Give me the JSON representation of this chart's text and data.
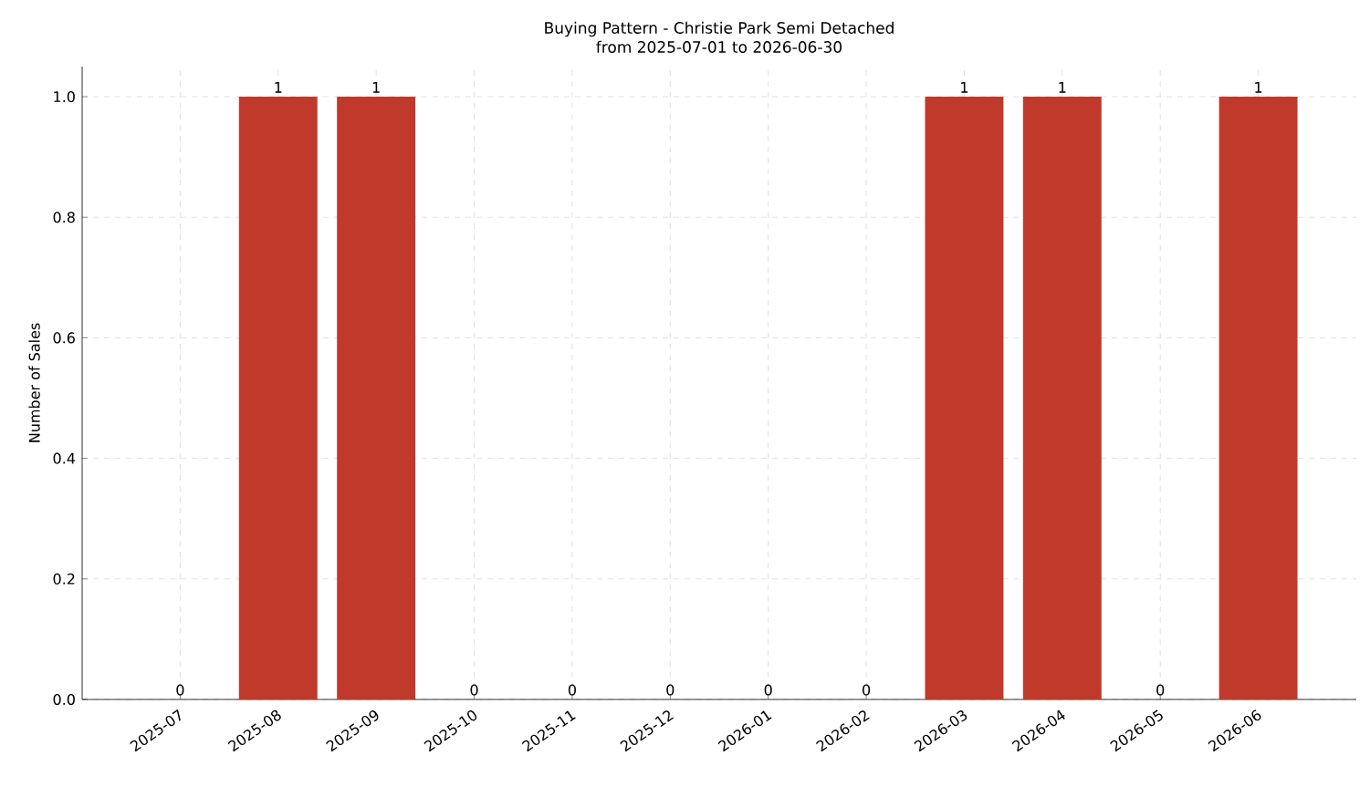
{
  "chart_data": {
    "type": "bar",
    "title": "Buying Pattern - Christie Park Semi Detached\nfrom 2025-07-01 to 2026-06-30",
    "ylabel": "Number of Sales",
    "categories": [
      "2025-07",
      "2025-08",
      "2025-09",
      "2025-10",
      "2025-11",
      "2025-12",
      "2026-01",
      "2026-02",
      "2026-03",
      "2026-04",
      "2026-05",
      "2026-06"
    ],
    "values": [
      0,
      1,
      1,
      0,
      0,
      0,
      0,
      0,
      1,
      1,
      0,
      1
    ],
    "color": "#c0392b",
    "ylim": [
      0,
      1.05
    ],
    "yticks": [
      {
        "value": 0,
        "label": "0.0"
      },
      {
        "value": 0.2,
        "label": "0.2"
      },
      {
        "value": 0.4,
        "label": "0.4"
      },
      {
        "value": 0.6,
        "label": "0.6"
      },
      {
        "value": 0.8,
        "label": "0.8"
      },
      {
        "value": 1.0,
        "label": "1.0"
      }
    ],
    "grid": true,
    "data_labels": true
  }
}
